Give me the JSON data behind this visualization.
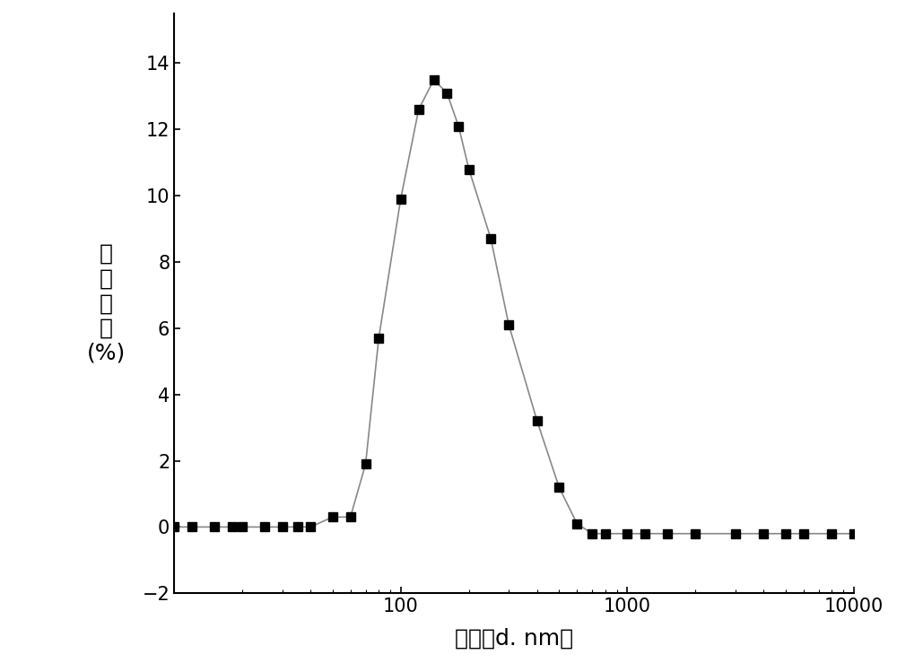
{
  "x": [
    10,
    12,
    15,
    18,
    20,
    25,
    30,
    35,
    40,
    50,
    60,
    70,
    80,
    100,
    120,
    140,
    160,
    180,
    200,
    250,
    300,
    400,
    500,
    600,
    700,
    800,
    1000,
    1200,
    1500,
    2000,
    3000,
    4000,
    5000,
    6000,
    8000,
    10000
  ],
  "y": [
    0,
    0,
    0,
    0,
    0,
    0,
    0,
    0,
    0,
    0.3,
    0.3,
    1.9,
    5.7,
    9.9,
    12.6,
    13.5,
    13.1,
    12.1,
    10.8,
    8.7,
    6.1,
    3.2,
    1.2,
    0.1,
    -0.2,
    -0.2,
    -0.2,
    -0.2,
    -0.2,
    -0.2,
    -0.2,
    -0.2,
    -0.2,
    -0.2,
    -0.2,
    -0.2
  ],
  "xlabel": "粒径（d. nm）",
  "ylabel_lines": [
    "体",
    "积",
    "分",
    "数",
    "(%)"
  ],
  "xlim_log": [
    10,
    10000
  ],
  "ylim": [
    -2,
    15.5
  ],
  "yticks": [
    -2,
    0,
    2,
    4,
    6,
    8,
    10,
    12,
    14
  ],
  "xtick_labels": [
    "100",
    "1000",
    "10000"
  ],
  "xtick_positions": [
    100,
    1000,
    10000
  ],
  "line_color": "#888888",
  "marker_color": "#000000",
  "marker": "s",
  "marker_size": 7,
  "line_width": 1.2,
  "background_color": "#ffffff",
  "font_size_label": 18,
  "font_size_tick": 15,
  "font_size_ylabel": 18
}
